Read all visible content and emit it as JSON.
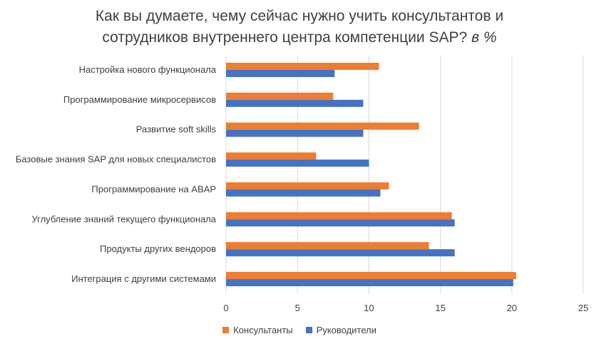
{
  "chart_data": {
    "type": "bar",
    "orientation": "horizontal",
    "title_line1": "Как вы думаете, чему сейчас нужно учить консультантов и",
    "title_line2": "сотрудников внутреннего центра компетенции SAP?",
    "title_unit": "в %",
    "categories": [
      "Настройка нового функционала",
      "Программирование микросервисов",
      "Развитие soft skills",
      "Базовые знания SAP для новых специалистов",
      "Программирование на ABAP",
      "Углубление знаний текущего функционала",
      "Продукты других вендоров",
      "Интеграция с другими системами"
    ],
    "series": [
      {
        "name": "Консультанты",
        "color": "#ed7d31",
        "values": [
          10.7,
          7.5,
          13.5,
          6.3,
          11.4,
          15.8,
          14.2,
          20.3
        ]
      },
      {
        "name": "Руководители",
        "color": "#4472c4",
        "values": [
          7.6,
          9.6,
          9.6,
          10.0,
          10.8,
          16.0,
          16.0,
          20.1
        ]
      }
    ],
    "xlim": [
      0,
      25
    ],
    "xticks": [
      "0",
      "5",
      "10",
      "15",
      "20",
      "25"
    ],
    "grid": true,
    "legend_position": "bottom"
  },
  "colors": {
    "grid": "#d9d9d9",
    "text": "#404040"
  }
}
